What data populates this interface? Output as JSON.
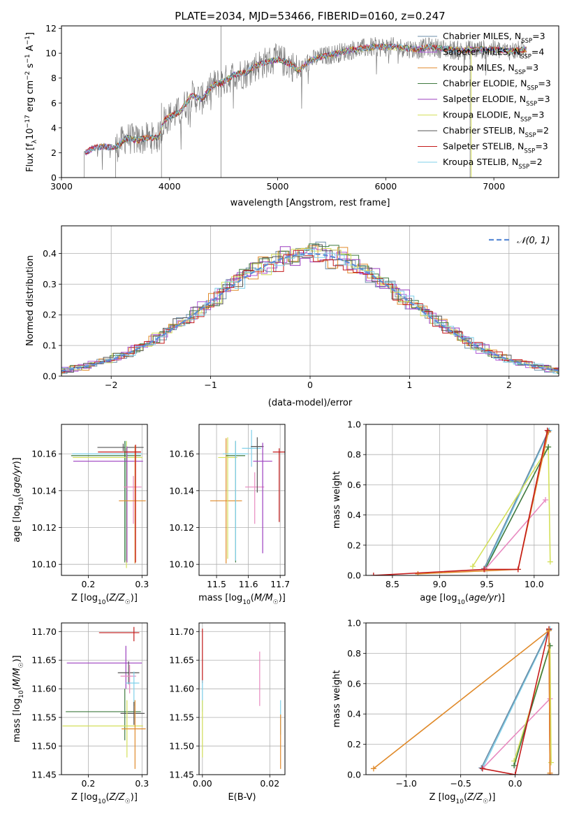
{
  "figure": {
    "title": "PLATE=2034, MJD=53466, FIBERID=0160, z=0.247"
  },
  "colors": {
    "c0": "#6b8ea8",
    "c1": "#b05ad6",
    "c2": "#e08a2a",
    "c3": "#3f7a3f",
    "c4": "#9b3fbf",
    "c5": "#d4e05a",
    "c6": "#555555",
    "c7": "#c41a1a",
    "c8": "#7fd0ea",
    "pink": "#e88ac0",
    "normal": "#5b8bd6"
  },
  "chart_data": [
    {
      "id": "spectrum",
      "type": "line",
      "title": "PLATE=2034, MJD=53466, FIBERID=0160, z=0.247",
      "xlabel": "wavelength [Angstrom, rest frame]",
      "ylabel": "Flux [f$_\\lambda$10$^{-17}$ erg cm$^{-2}$ s$^{-1}$ A$^{-1}$]",
      "xlim": [
        3000,
        7600
      ],
      "ylim": [
        0,
        12.2
      ],
      "xticks": [
        "3000",
        "4000",
        "5000",
        "6000",
        "7000"
      ],
      "yticks": [
        "0",
        "2",
        "4",
        "6",
        "8",
        "10",
        "12"
      ],
      "legend_position": "right",
      "legend": [
        {
          "prefix": "Chabrier MILES, N",
          "n": "3",
          "color": "c0"
        },
        {
          "prefix": "Salpeter MILES, N",
          "n": "4",
          "color": "c1"
        },
        {
          "prefix": "Kroupa MILES, N",
          "n": "3",
          "color": "c2"
        },
        {
          "prefix": "Chabrier ELODIE, N",
          "n": "3",
          "color": "c3"
        },
        {
          "prefix": "Salpeter ELODIE, N",
          "n": "3",
          "color": "c4"
        },
        {
          "prefix": "Kroupa ELODIE, N",
          "n": "3",
          "color": "c5"
        },
        {
          "prefix": "Chabrier STELIB, N",
          "n": "2",
          "color": "c6"
        },
        {
          "prefix": "Salpeter STELIB, N",
          "n": "3",
          "color": "c7"
        },
        {
          "prefix": "Kroupa STELIB, N",
          "n": "2",
          "color": "c8"
        }
      ],
      "continuum": {
        "x": [
          3220,
          3300,
          3400,
          3500,
          3600,
          3700,
          3800,
          3900,
          3950,
          4000,
          4100,
          4200,
          4300,
          4400,
          4500,
          4600,
          4700,
          4800,
          4900,
          5000,
          5100,
          5200,
          5300,
          5400,
          5500,
          5600,
          5700,
          5800,
          5900,
          6000,
          6100,
          6200,
          6300,
          6400,
          6500,
          6600,
          6700,
          6800,
          6900,
          7000,
          7100,
          7200,
          7300
        ],
        "y": [
          2.0,
          2.4,
          2.5,
          2.4,
          3.2,
          3.0,
          3.2,
          3.2,
          4.6,
          4.9,
          5.3,
          6.6,
          6.3,
          7.4,
          7.7,
          8.3,
          8.4,
          9.0,
          9.3,
          9.5,
          9.2,
          8.6,
          9.4,
          9.7,
          9.9,
          10.1,
          10.3,
          10.4,
          10.5,
          10.5,
          10.5,
          10.4,
          10.3,
          10.5,
          10.4,
          10.3,
          10.2,
          10.3,
          10.3,
          10.3,
          10.2,
          10.2,
          10.3
        ]
      },
      "observed_start": 3210
    },
    {
      "id": "residuals",
      "type": "line",
      "xlabel": "(data-model)/error",
      "ylabel": "Normed distribution",
      "xlim": [
        -2.5,
        2.5
      ],
      "ylim": [
        0,
        0.49
      ],
      "xticks": [
        "−2",
        "−1",
        "0",
        "1",
        "2"
      ],
      "yticks": [
        "0.0",
        "0.1",
        "0.2",
        "0.3",
        "0.4"
      ],
      "grid": true,
      "legend": [
        {
          "label": "𝒩(0, 1)",
          "color": "normal",
          "style": "dashed"
        }
      ],
      "legend_position": "top-right",
      "bin_width": 0.1,
      "model": "normal(0,1) histograms for 9 fits"
    },
    {
      "id": "age_vs_z",
      "type": "scatter",
      "xlabel": "Z [log10(Z/Z☉)]",
      "ylabel": "age [log10(age/yr)]",
      "xlim": [
        0.15,
        0.31
      ],
      "ylim": [
        10.094,
        10.176
      ],
      "xticks": [
        "0.2",
        "0.3"
      ],
      "yticks": [
        "10.10",
        "10.12",
        "10.14",
        "10.16"
      ],
      "grid": true,
      "points": [
        {
          "x": 0.265,
          "xerr": [
            0.048,
            0.038
          ],
          "y": 10.1635,
          "yerr": [
            0.002,
            0.002
          ],
          "color": "c6"
        },
        {
          "x": 0.268,
          "xerr": [
            0.05,
            0.03
          ],
          "y": 10.161,
          "yerr": [
            0.002,
            0.002
          ],
          "color": "c7"
        },
        {
          "x": 0.27,
          "xerr": [
            0.1,
            0.03
          ],
          "y": 10.16,
          "yerr": [
            0.058,
            0.007
          ],
          "color": "c8"
        },
        {
          "x": 0.268,
          "xerr": [
            0.1,
            0.03
          ],
          "y": 10.159,
          "yerr": [
            0.058,
            0.008
          ],
          "color": "c3"
        },
        {
          "x": 0.271,
          "xerr": [
            0.1,
            0.03
          ],
          "y": 10.158,
          "yerr": [
            0.06,
            0.009
          ],
          "color": "c5"
        },
        {
          "x": 0.272,
          "xerr": [
            0.1,
            0.03
          ],
          "y": 10.156,
          "yerr": [
            0.055,
            0.008
          ],
          "color": "c4"
        },
        {
          "x": 0.284,
          "xerr": [
            0.018,
            0.015
          ],
          "y": 10.142,
          "yerr": [
            0.02,
            0.006
          ],
          "color": "pink"
        },
        {
          "x": 0.287,
          "xerr": [
            0.03,
            0.02
          ],
          "y": 10.1345,
          "yerr": [
            0.034,
            0.03
          ],
          "color": "c2"
        },
        {
          "x": 0.288,
          "xerr": [
            0.02,
            0.01
          ],
          "y": 10.161,
          "yerr": [
            0.06,
            0.004
          ],
          "color": "c7"
        }
      ]
    },
    {
      "id": "age_vs_mass",
      "type": "scatter",
      "xlabel": "mass [log10(M/M☉)]",
      "ylabel": "",
      "xlim": [
        11.445,
        11.715
      ],
      "ylim": [
        10.094,
        10.176
      ],
      "xticks": [
        "11.5",
        "11.6",
        "11.7"
      ],
      "yticks": [
        "10.10",
        "10.12",
        "10.14",
        "10.16"
      ],
      "grid": true,
      "points": [
        {
          "x": 11.53,
          "xerr": [
            0.05,
            0.05
          ],
          "y": 10.1345,
          "yerr": [
            0.034,
            0.034
          ],
          "color": "c2"
        },
        {
          "x": 11.535,
          "xerr": [
            0.03,
            0.03
          ],
          "y": 10.158,
          "yerr": [
            0.055,
            0.011
          ],
          "color": "c5"
        },
        {
          "x": 11.56,
          "xerr": [
            0.03,
            0.03
          ],
          "y": 10.159,
          "yerr": [
            0.058,
            0.008
          ],
          "color": "c3"
        },
        {
          "x": 11.56,
          "xerr": [
            0.04,
            0.04
          ],
          "y": 10.16,
          "yerr": [
            0.058,
            0.007
          ],
          "color": "c8"
        },
        {
          "x": 11.61,
          "xerr": [
            0.03,
            0.03
          ],
          "y": 10.163,
          "yerr": [
            0.01,
            0.01
          ],
          "color": "c8"
        },
        {
          "x": 11.62,
          "xerr": [
            0.03,
            0.03
          ],
          "y": 10.142,
          "yerr": [
            0.02,
            0.008
          ],
          "color": "pink"
        },
        {
          "x": 11.628,
          "xerr": [
            0.02,
            0.02
          ],
          "y": 10.164,
          "yerr": [
            0.025,
            0.005
          ],
          "color": "c6"
        },
        {
          "x": 11.645,
          "xerr": [
            0.03,
            0.03
          ],
          "y": 10.156,
          "yerr": [
            0.05,
            0.01
          ],
          "color": "c4"
        },
        {
          "x": 11.697,
          "xerr": [
            0.02,
            0.02
          ],
          "y": 10.161,
          "yerr": [
            0.038,
            0.002
          ],
          "color": "c7"
        }
      ]
    },
    {
      "id": "mass_weight_vs_age",
      "type": "line",
      "xlabel": "age [log10(age/yr)]",
      "ylabel": "mass weight",
      "xlim": [
        8.22,
        10.26
      ],
      "ylim": [
        0,
        1.0
      ],
      "xticks": [
        "8.5",
        "9.0",
        "9.5",
        "10.0"
      ],
      "yticks": [
        "0.0",
        "0.2",
        "0.4",
        "0.6",
        "0.8",
        "1.0"
      ],
      "grid": true,
      "series": [
        {
          "color": "c8",
          "x": [
            9.48,
            10.16
          ],
          "y": [
            0.04,
            0.96
          ]
        },
        {
          "color": "c0",
          "x": [
            9.47,
            10.15
          ],
          "y": [
            0.045,
            0.955
          ]
        },
        {
          "color": "c5",
          "x": [
            9.35,
            10.15,
            10.17
          ],
          "y": [
            0.06,
            0.85,
            0.09
          ]
        },
        {
          "color": "c3",
          "x": [
            9.48,
            10.15
          ],
          "y": [
            0.04,
            0.85
          ]
        },
        {
          "color": "pink",
          "x": [
            9.48,
            10.12
          ],
          "y": [
            0.04,
            0.5
          ]
        },
        {
          "color": "c2",
          "x": [
            8.77,
            9.83,
            10.15
          ],
          "y": [
            0.01,
            0.04,
            0.95
          ]
        },
        {
          "color": "c7",
          "x": [
            8.3,
            9.47,
            9.83,
            10.14
          ],
          "y": [
            0.0,
            0.04,
            0.04,
            0.96
          ]
        }
      ]
    },
    {
      "id": "mass_vs_z",
      "type": "scatter",
      "xlabel": "Z [log10(Z/Z☉)]",
      "ylabel": "mass [log10(M/M☉)]",
      "xlim": [
        0.15,
        0.31
      ],
      "ylim": [
        11.45,
        11.715
      ],
      "xticks": [
        "0.2",
        "0.3"
      ],
      "yticks": [
        "11.45",
        "11.50",
        "11.55",
        "11.60",
        "11.65",
        "11.70"
      ],
      "grid": true,
      "points": [
        {
          "x": 0.285,
          "xerr": [
            0.065,
            0.01
          ],
          "y": 11.698,
          "yerr": [
            0.015,
            0.01
          ],
          "color": "c7"
        },
        {
          "x": 0.27,
          "xerr": [
            0.11,
            0.03
          ],
          "y": 11.645,
          "yerr": [
            0.045,
            0.03
          ],
          "color": "c4"
        },
        {
          "x": 0.275,
          "xerr": [
            0.02,
            0.02
          ],
          "y": 11.628,
          "yerr": [
            0.02,
            0.02
          ],
          "color": "c6"
        },
        {
          "x": 0.277,
          "xerr": [
            0.017,
            0.012
          ],
          "y": 11.622,
          "yerr": [
            0.03,
            0.02
          ],
          "color": "pink"
        },
        {
          "x": 0.285,
          "xerr": [
            0.015,
            0.01
          ],
          "y": 11.61,
          "yerr": [
            0.04,
            0.02
          ],
          "color": "c8"
        },
        {
          "x": 0.268,
          "xerr": [
            0.11,
            0.03
          ],
          "y": 11.56,
          "yerr": [
            0.05,
            0.04
          ],
          "color": "c3"
        },
        {
          "x": 0.285,
          "xerr": [
            0.025,
            0.02
          ],
          "y": 11.557,
          "yerr": [
            0.02,
            0.02
          ],
          "color": "c6"
        },
        {
          "x": 0.272,
          "xerr": [
            0.12,
            0.03
          ],
          "y": 11.535,
          "yerr": [
            0.055,
            0.045
          ],
          "color": "c5"
        },
        {
          "x": 0.287,
          "xerr": [
            0.025,
            0.02
          ],
          "y": 11.53,
          "yerr": [
            0.07,
            0.05
          ],
          "color": "c2"
        }
      ]
    },
    {
      "id": "mass_vs_ebv",
      "type": "scatter",
      "xlabel": "E(B-V)",
      "ylabel": "",
      "xlim": [
        -0.001,
        0.0245
      ],
      "ylim": [
        11.45,
        11.715
      ],
      "xticks": [
        "0.00",
        "0.02"
      ],
      "yticks": [
        "11.45",
        "11.50",
        "11.55",
        "11.60",
        "11.65",
        "11.70"
      ],
      "grid": true,
      "points": [
        {
          "x": 0.0,
          "xerr": [
            0,
            0
          ],
          "y": 11.66,
          "yerr": [
            0.05,
            0.045
          ],
          "color": "c7"
        },
        {
          "x": 0.0,
          "xerr": [
            0,
            0
          ],
          "y": 11.59,
          "yerr": [
            0.03,
            0.025
          ],
          "color": "c8"
        },
        {
          "x": 0.0,
          "xerr": [
            0,
            0
          ],
          "y": 11.525,
          "yerr": [
            0.045,
            0.055
          ],
          "color": "c5"
        },
        {
          "x": 0.017,
          "xerr": [
            0,
            0
          ],
          "y": 11.62,
          "yerr": [
            0.05,
            0.045
          ],
          "color": "pink"
        },
        {
          "x": 0.0232,
          "xerr": [
            0,
            0
          ],
          "y": 11.55,
          "yerr": [
            0.03,
            0.03
          ],
          "color": "c8"
        },
        {
          "x": 0.0232,
          "xerr": [
            0,
            0
          ],
          "y": 11.51,
          "yerr": [
            0.05,
            0.045
          ],
          "color": "c2"
        }
      ]
    },
    {
      "id": "mass_weight_vs_z",
      "type": "line",
      "xlabel": "Z [log10(Z/Z☉)]",
      "ylabel": "mass weight",
      "xlim": [
        -1.37,
        0.4
      ],
      "ylim": [
        0,
        1.0
      ],
      "xticks": [
        "−1.0",
        "−0.5",
        "0.0"
      ],
      "yticks": [
        "0.0",
        "0.2",
        "0.4",
        "0.6",
        "0.8",
        "1.0"
      ],
      "grid": true,
      "series": [
        {
          "color": "c8",
          "x": [
            -0.3,
            0.32
          ],
          "y": [
            0.04,
            0.96
          ]
        },
        {
          "color": "c0",
          "x": [
            -0.31,
            0.31
          ],
          "y": [
            0.045,
            0.955
          ]
        },
        {
          "color": "pink",
          "x": [
            -0.3,
            0.32
          ],
          "y": [
            0.04,
            0.5
          ]
        },
        {
          "color": "c5",
          "x": [
            -0.01,
            0.32,
            0.33
          ],
          "y": [
            0.09,
            0.85,
            0.08
          ]
        },
        {
          "color": "c3",
          "x": [
            -0.01,
            0.32
          ],
          "y": [
            0.06,
            0.85
          ]
        },
        {
          "color": "c7",
          "x": [
            -0.3,
            0.0,
            0.31,
            0.32
          ],
          "y": [
            0.04,
            0.0,
            0.96,
            0.0
          ]
        },
        {
          "color": "c2",
          "x": [
            -1.3,
            0.31,
            0.32
          ],
          "y": [
            0.04,
            0.95,
            0.01
          ]
        }
      ]
    }
  ]
}
